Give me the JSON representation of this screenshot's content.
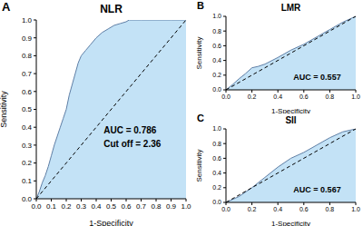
{
  "chart_data": [
    {
      "type": "area",
      "panel": "A",
      "title": "NLR",
      "x_label": "1-Specificity",
      "y_label": "Sensitivity",
      "annotations": [
        "AUC = 0.786",
        "Cut off = 2.36"
      ],
      "color": "#5f7fa6",
      "fill": "#c3e2f6",
      "x": [
        0,
        0.02,
        0.04,
        0.06,
        0.08,
        0.1,
        0.12,
        0.14,
        0.16,
        0.18,
        0.2,
        0.22,
        0.24,
        0.26,
        0.28,
        0.3,
        0.33,
        0.36,
        0.4,
        0.44,
        0.48,
        0.52,
        0.56,
        0.6,
        0.62,
        0.7,
        0.8,
        0.9,
        1
      ],
      "values": [
        0,
        0.04,
        0.09,
        0.13,
        0.18,
        0.24,
        0.3,
        0.35,
        0.4,
        0.45,
        0.5,
        0.58,
        0.64,
        0.7,
        0.76,
        0.8,
        0.83,
        0.86,
        0.9,
        0.93,
        0.95,
        0.97,
        0.98,
        0.99,
        1,
        1,
        1,
        1,
        1
      ],
      "diagonal": {
        "x": [
          0,
          1
        ],
        "values": [
          0,
          1
        ]
      },
      "xlim": [
        0,
        1
      ],
      "ylim": [
        0,
        1
      ],
      "xticks": [
        {
          "value": 0,
          "label": "0.0"
        },
        0.1,
        0.2,
        0.3,
        0.4,
        0.5,
        0.6,
        0.7,
        0.8,
        0.9,
        {
          "value": 1,
          "label": "1.0"
        }
      ],
      "yticks": [
        {
          "value": 0,
          "label": "0.0"
        },
        0.1,
        0.2,
        0.3,
        0.4,
        0.5,
        0.6,
        0.7,
        0.8,
        0.9,
        {
          "value": 1,
          "label": "1.0"
        }
      ]
    },
    {
      "type": "area",
      "panel": "B",
      "title": "LMR",
      "x_label": "1-Specificity",
      "y_label": "Sensitivity",
      "annotations": [
        "AUC = 0.557"
      ],
      "color": "#5f7fa6",
      "fill": "#c3e2f6",
      "x": [
        0,
        0.05,
        0.1,
        0.15,
        0.2,
        0.25,
        0.3,
        0.4,
        0.5,
        0.6,
        0.7,
        0.8,
        0.9,
        1
      ],
      "values": [
        0,
        0.07,
        0.15,
        0.22,
        0.3,
        0.32,
        0.35,
        0.44,
        0.54,
        0.62,
        0.72,
        0.82,
        0.92,
        1
      ],
      "diagonal": {
        "x": [
          0,
          1
        ],
        "values": [
          0,
          1
        ]
      },
      "xlim": [
        0,
        1
      ],
      "ylim": [
        0,
        1
      ],
      "xticks": [
        {
          "value": 0,
          "label": "0.0"
        },
        0.2,
        0.4,
        0.6,
        0.8,
        {
          "value": 1,
          "label": "1.0"
        }
      ],
      "yticks": [
        {
          "value": 0,
          "label": "0.0"
        },
        0.2,
        0.4,
        0.6,
        0.8,
        {
          "value": 1,
          "label": "1.0"
        }
      ]
    },
    {
      "type": "area",
      "panel": "C",
      "title": "SII",
      "x_label": "1-Specificity",
      "y_label": "Sensitivity",
      "annotations": [
        "AUC = 0.567"
      ],
      "color": "#5f7fa6",
      "fill": "#c3e2f6",
      "x": [
        0,
        0.1,
        0.2,
        0.3,
        0.4,
        0.5,
        0.6,
        0.7,
        0.8,
        0.9,
        1
      ],
      "values": [
        0,
        0.08,
        0.2,
        0.34,
        0.48,
        0.6,
        0.68,
        0.78,
        0.88,
        0.96,
        1
      ],
      "diagonal": {
        "x": [
          0,
          1
        ],
        "values": [
          0,
          1
        ]
      },
      "xlim": [
        0,
        1
      ],
      "ylim": [
        0,
        1
      ],
      "xticks": [
        {
          "value": 0,
          "label": "0.0"
        },
        0.2,
        0.4,
        0.6,
        0.8,
        {
          "value": 1,
          "label": "1.0"
        }
      ],
      "yticks": [
        {
          "value": 0,
          "label": "0.0"
        },
        0.2,
        0.4,
        0.6,
        0.8,
        {
          "value": 1,
          "label": "1.0"
        }
      ]
    }
  ]
}
